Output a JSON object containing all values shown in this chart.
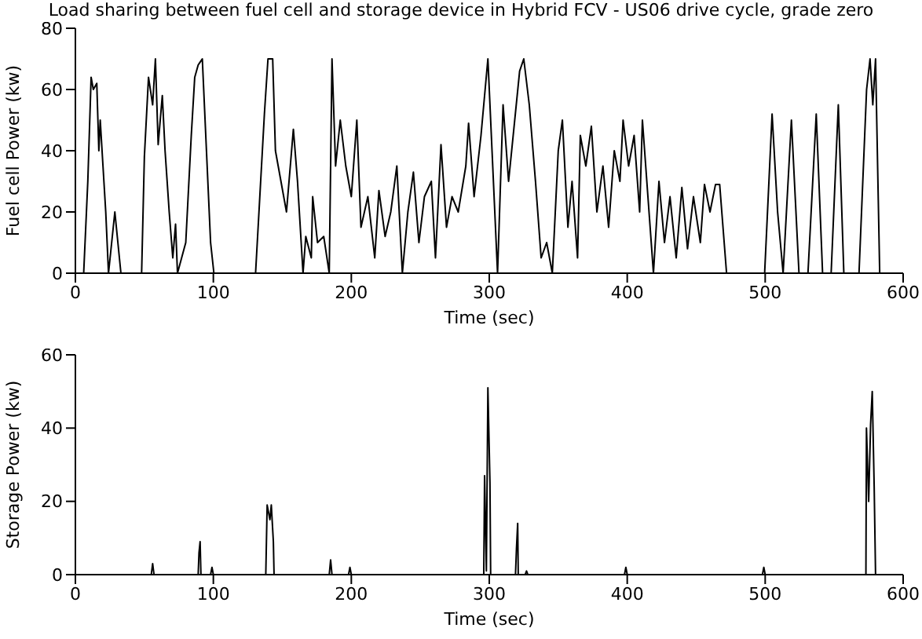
{
  "chart_data": [
    {
      "type": "line",
      "title": "Load sharing between fuel cell and storage device in Hybrid FCV - US06 drive cycle, grade zero",
      "xlabel": "Time (sec)",
      "ylabel": "Fuel cell Power (kw)",
      "xlim": [
        0,
        600
      ],
      "xticks": [
        0,
        100,
        200,
        300,
        400,
        500,
        600
      ],
      "ylim": [
        0,
        80
      ],
      "yticks": [
        0,
        20,
        40,
        60,
        80
      ],
      "grid": false,
      "legend": false,
      "marker": "none",
      "line_style": "solid",
      "series": [
        {
          "color": "#000000",
          "x": [
            0,
            6,
            9,
            11.4,
            13,
            15.5,
            17,
            18,
            20,
            22,
            24,
            28.6,
            33,
            48,
            50,
            53,
            56,
            58,
            60,
            63,
            65,
            68,
            70.6,
            72.6,
            74,
            77,
            80,
            84,
            86.5,
            89,
            92,
            95,
            98,
            100.4,
            130.6,
            137,
            139.6,
            143,
            145,
            147,
            151,
            153,
            158,
            161,
            165,
            167,
            171,
            172,
            175.5,
            180,
            184,
            186,
            188.6,
            192,
            196,
            200,
            204,
            207,
            212,
            217,
            220,
            224.5,
            228.6,
            233,
            237,
            241,
            245,
            249,
            253,
            258,
            261,
            265,
            269,
            273,
            277.5,
            283,
            285,
            289,
            294,
            299,
            302,
            306,
            310,
            314,
            318,
            322,
            325,
            329,
            333.5,
            337.6,
            341.6,
            345.7,
            350,
            353,
            357,
            360,
            364,
            366,
            370,
            374,
            378,
            382.4,
            386.5,
            390.6,
            394.7,
            397,
            401,
            405,
            409,
            411,
            415,
            419,
            423,
            427,
            431,
            435.5,
            439.6,
            443.7,
            448,
            453,
            456,
            460,
            464,
            467,
            472,
            499.6,
            505,
            509,
            513,
            519,
            524.5,
            531,
            537,
            541.6,
            547.8,
            553,
            557,
            568,
            573.5,
            576,
            578,
            580,
            583,
            600
          ],
          "values": [
            0,
            0,
            30,
            64,
            60,
            62,
            40,
            50,
            35,
            20,
            0,
            20,
            0,
            0,
            38,
            64,
            55,
            70,
            42,
            58,
            40,
            20,
            5,
            16,
            0,
            5,
            10,
            45,
            64,
            68,
            70,
            40,
            10,
            0,
            0,
            52,
            70,
            70,
            40,
            35,
            25,
            20,
            47,
            30,
            0,
            12,
            5,
            25,
            10,
            12,
            0,
            70,
            35,
            50,
            35,
            25,
            50,
            15,
            25,
            5,
            27,
            12,
            20,
            35,
            0,
            20,
            33,
            10,
            25,
            30,
            5,
            42,
            15,
            25,
            20,
            35,
            49,
            25,
            45,
            70,
            40,
            0,
            55,
            30,
            48,
            66,
            70,
            55,
            30,
            5,
            10,
            0,
            40,
            50,
            15,
            30,
            5,
            45,
            35,
            48,
            20,
            35,
            15,
            40,
            30,
            50,
            35,
            45,
            20,
            50,
            25,
            0,
            30,
            10,
            25,
            5,
            28,
            8,
            25,
            10,
            29,
            20,
            29,
            29,
            0,
            0,
            52,
            20,
            0,
            50,
            0,
            0,
            52,
            0,
            0,
            55,
            0,
            0,
            60,
            70,
            55,
            70,
            0,
            0
          ]
        }
      ]
    },
    {
      "type": "line",
      "xlabel": "Time (sec)",
      "ylabel": "Storage Power (kw)",
      "xlim": [
        0,
        600
      ],
      "xticks": [
        0,
        100,
        200,
        300,
        400,
        500,
        600
      ],
      "ylim": [
        0,
        60
      ],
      "yticks": [
        0,
        20,
        40,
        60
      ],
      "grid": false,
      "legend": false,
      "marker": "none",
      "line_style": "solid",
      "series": [
        {
          "color": "#000000",
          "x": [
            0,
            55,
            56,
            57,
            89,
            89.6,
            90.4,
            91,
            98,
            99,
            100,
            138,
            139,
            141,
            142,
            143.5,
            144,
            184,
            185,
            186,
            198,
            199,
            200,
            296,
            296.6,
            297.9,
            299,
            300.5,
            301,
            319,
            319.7,
            320.6,
            321,
            326,
            327,
            328,
            398,
            399,
            400,
            498,
            499,
            500,
            573,
            573.4,
            575,
            576.4,
            577.6,
            579,
            580,
            600
          ],
          "values": [
            0,
            0,
            3,
            0,
            0,
            6,
            9,
            0,
            0,
            2,
            0,
            0,
            19,
            15,
            19,
            9,
            0,
            0,
            4,
            0,
            0,
            2,
            0,
            0,
            27,
            1,
            51,
            25,
            0,
            0,
            7,
            14,
            0,
            0,
            1,
            0,
            0,
            2,
            0,
            0,
            2,
            0,
            0,
            40,
            20,
            41,
            50,
            24,
            0,
            0
          ]
        }
      ]
    }
  ]
}
